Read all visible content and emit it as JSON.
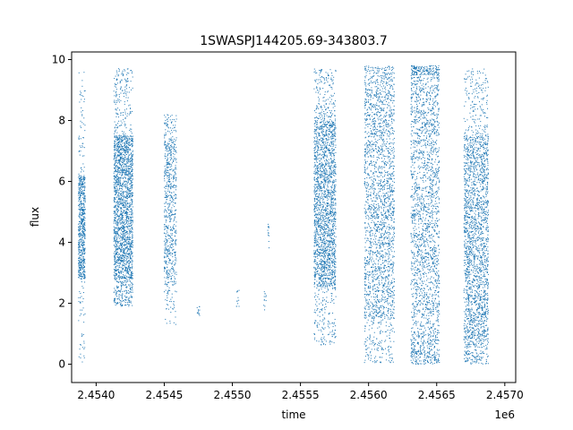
{
  "chart_data": {
    "type": "scatter",
    "title": "1SWASPJ144205.69-343803.7",
    "xlabel": "time",
    "ylabel": "flux",
    "x_offset_label": "1e6",
    "xlim": [
      2453820,
      2457080
    ],
    "ylim": [
      -0.6,
      10.25
    ],
    "x_ticks": [
      2.454,
      2.4545,
      2.455,
      2.4555,
      2.456,
      2.4565,
      2.457
    ],
    "x_tick_labels": [
      "2.4540",
      "2.4545",
      "2.4550",
      "2.4555",
      "2.4560",
      "2.4565",
      "2.4570"
    ],
    "y_ticks": [
      0,
      2,
      4,
      6,
      8,
      10
    ],
    "y_tick_labels": [
      "0",
      "2",
      "4",
      "6",
      "8",
      "10"
    ],
    "grid": false,
    "marker_color": "#1f77b4",
    "series": [
      {
        "points_description_note": "",
        "clusters": [
          {
            "x_range": [
              2453870,
              2453920
            ],
            "y_core": [
              2.8,
              6.2
            ],
            "y_max": 9.6,
            "y_min": 0.0,
            "density": "medium"
          },
          {
            "x_range": [
              2454130,
              2454270
            ],
            "y_core": [
              2.8,
              7.5
            ],
            "y_max": 9.7,
            "y_min": 1.9,
            "density": "high"
          },
          {
            "x_range": [
              2454500,
              2454590
            ],
            "y_core": [
              2.6,
              7.4
            ],
            "y_max": 8.2,
            "y_min": 1.3,
            "density": "medium"
          },
          {
            "x_range": [
              2454740,
              2454760
            ],
            "y_core": [
              1.6,
              1.9
            ],
            "y_max": 2.0,
            "y_min": 1.6,
            "density": "sparse"
          },
          {
            "x_range": [
              2455030,
              2455050
            ],
            "y_core": [
              1.9,
              2.4
            ],
            "y_max": 2.5,
            "y_min": 1.9,
            "density": "sparse"
          },
          {
            "x_range": [
              2455230,
              2455250
            ],
            "y_core": [
              1.8,
              2.4
            ],
            "y_max": 2.5,
            "y_min": 1.7,
            "density": "sparse"
          },
          {
            "x_range": [
              2455260,
              2455270
            ],
            "y_core": [
              3.9,
              4.5
            ],
            "y_max": 4.6,
            "y_min": 3.8,
            "density": "sparse"
          },
          {
            "x_range": [
              2455600,
              2455760
            ],
            "y_core": [
              2.5,
              8.0
            ],
            "y_max": 9.7,
            "y_min": 0.6,
            "density": "high"
          },
          {
            "x_range": [
              2455970,
              2456190
            ],
            "y_core": [
              1.5,
              9.0
            ],
            "y_max": 9.8,
            "y_min": 0.05,
            "density": "high"
          },
          {
            "x_range": [
              2456310,
              2456520
            ],
            "y_core": [
              0.5,
              9.5
            ],
            "y_max": 9.8,
            "y_min": 0.0,
            "density": "high"
          },
          {
            "x_range": [
              2456700,
              2456880
            ],
            "y_core": [
              0.8,
              7.5
            ],
            "y_max": 9.7,
            "y_min": 0.0,
            "density": "high"
          }
        ]
      }
    ]
  }
}
